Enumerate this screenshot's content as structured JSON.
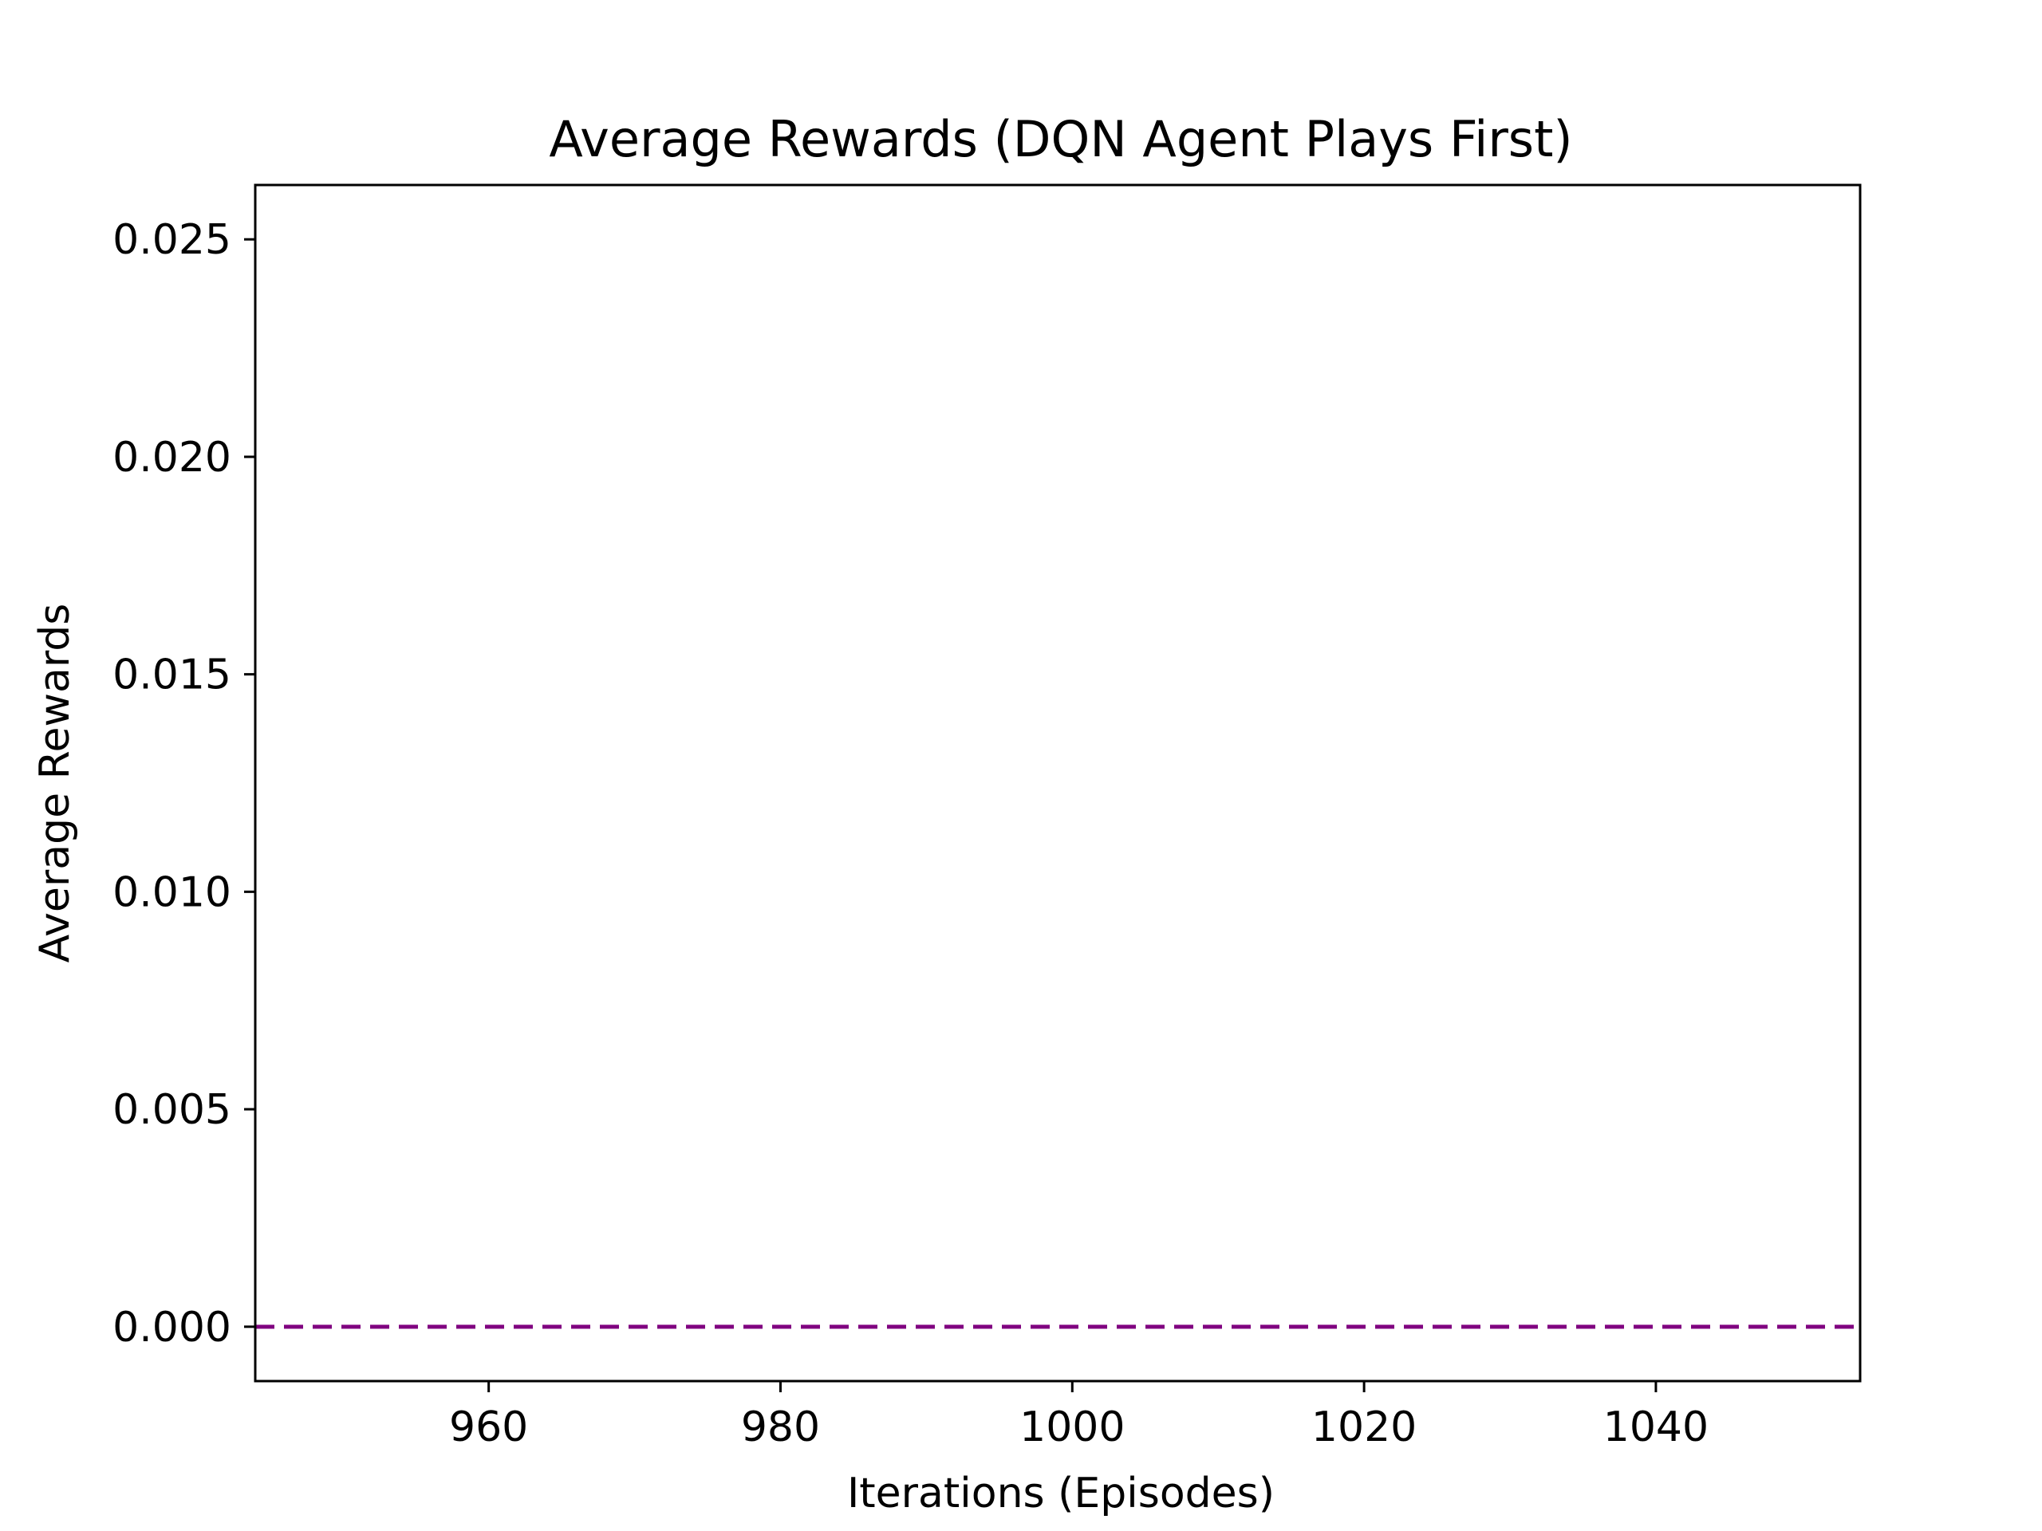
{
  "chart_data": {
    "type": "line",
    "title": "Average Rewards (DQN Agent Plays First)",
    "xlabel": "Iterations (Episodes)",
    "ylabel": "Average Rewards",
    "xlim": [
      944,
      1054
    ],
    "ylim": [
      -0.00125,
      0.02625
    ],
    "x_ticks": [
      960,
      980,
      1000,
      1020,
      1040
    ],
    "x_tick_labels": [
      "960",
      "980",
      "1000",
      "1020",
      "1040"
    ],
    "y_ticks": [
      0.0,
      0.005,
      0.01,
      0.015,
      0.02,
      0.025
    ],
    "y_tick_labels": [
      "0.000",
      "0.005",
      "0.010",
      "0.015",
      "0.020",
      "0.025"
    ],
    "grid": false,
    "series": [
      {
        "line_style": "dashed",
        "color": "#800080",
        "x": [
          944,
          1054
        ],
        "y": [
          0.0,
          0.0
        ]
      }
    ]
  }
}
